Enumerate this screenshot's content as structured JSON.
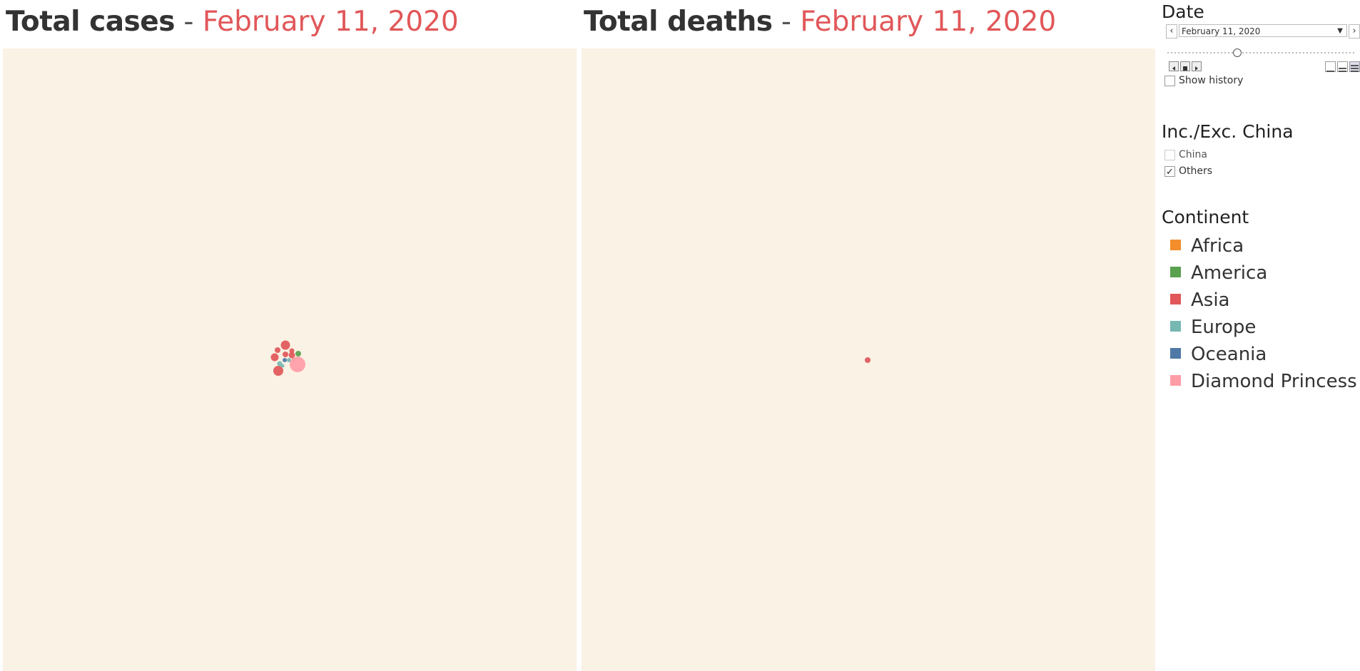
{
  "cases": {
    "title_main": "Total cases",
    "title_sep": " - ",
    "title_date": "February 11, 2020"
  },
  "deaths": {
    "title_main": "Total deaths",
    "title_sep": " - ",
    "title_date": "February 11, 2020"
  },
  "date_filter": {
    "heading": "Date",
    "selected": "February 11, 2020",
    "prev_icon": "chevron-left-icon",
    "next_icon": "chevron-right-icon",
    "show_history_label": "Show history",
    "show_history_checked": false
  },
  "china_filter": {
    "heading": "Inc./Exc. China",
    "options": [
      {
        "label": "China",
        "checked": false
      },
      {
        "label": "Others",
        "checked": true
      }
    ]
  },
  "continent_legend": {
    "heading": "Continent",
    "items": [
      {
        "label": "Africa",
        "color": "#f28e2b"
      },
      {
        "label": "America",
        "color": "#59a14f"
      },
      {
        "label": "Asia",
        "color": "#e15759"
      },
      {
        "label": "Europe",
        "color": "#76b7b2"
      },
      {
        "label": "Oceania",
        "color": "#4e79a7"
      },
      {
        "label": "Diamond Princess",
        "color": "#ff9da7"
      }
    ]
  }
}
